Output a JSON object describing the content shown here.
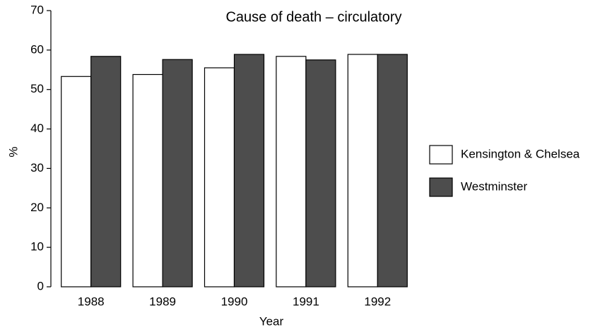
{
  "chart_data": {
    "type": "bar",
    "title": "Cause of death – circulatory",
    "x_label": "Year",
    "y_label": "%",
    "categories": [
      "1988",
      "1989",
      "1990",
      "1991",
      "1992"
    ],
    "series": [
      {
        "name": "Kensington & Chelsea",
        "color": "#ffffff",
        "values": [
          53.3,
          53.8,
          55.5,
          58.4,
          58.9
        ]
      },
      {
        "name": "Westminster",
        "color": "#4d4d4d",
        "values": [
          58.4,
          57.6,
          58.9,
          57.5,
          58.9
        ]
      }
    ],
    "ylim": [
      0,
      70
    ],
    "yticks": [
      0,
      10,
      20,
      30,
      40,
      50,
      60,
      70
    ],
    "legend": "right"
  }
}
